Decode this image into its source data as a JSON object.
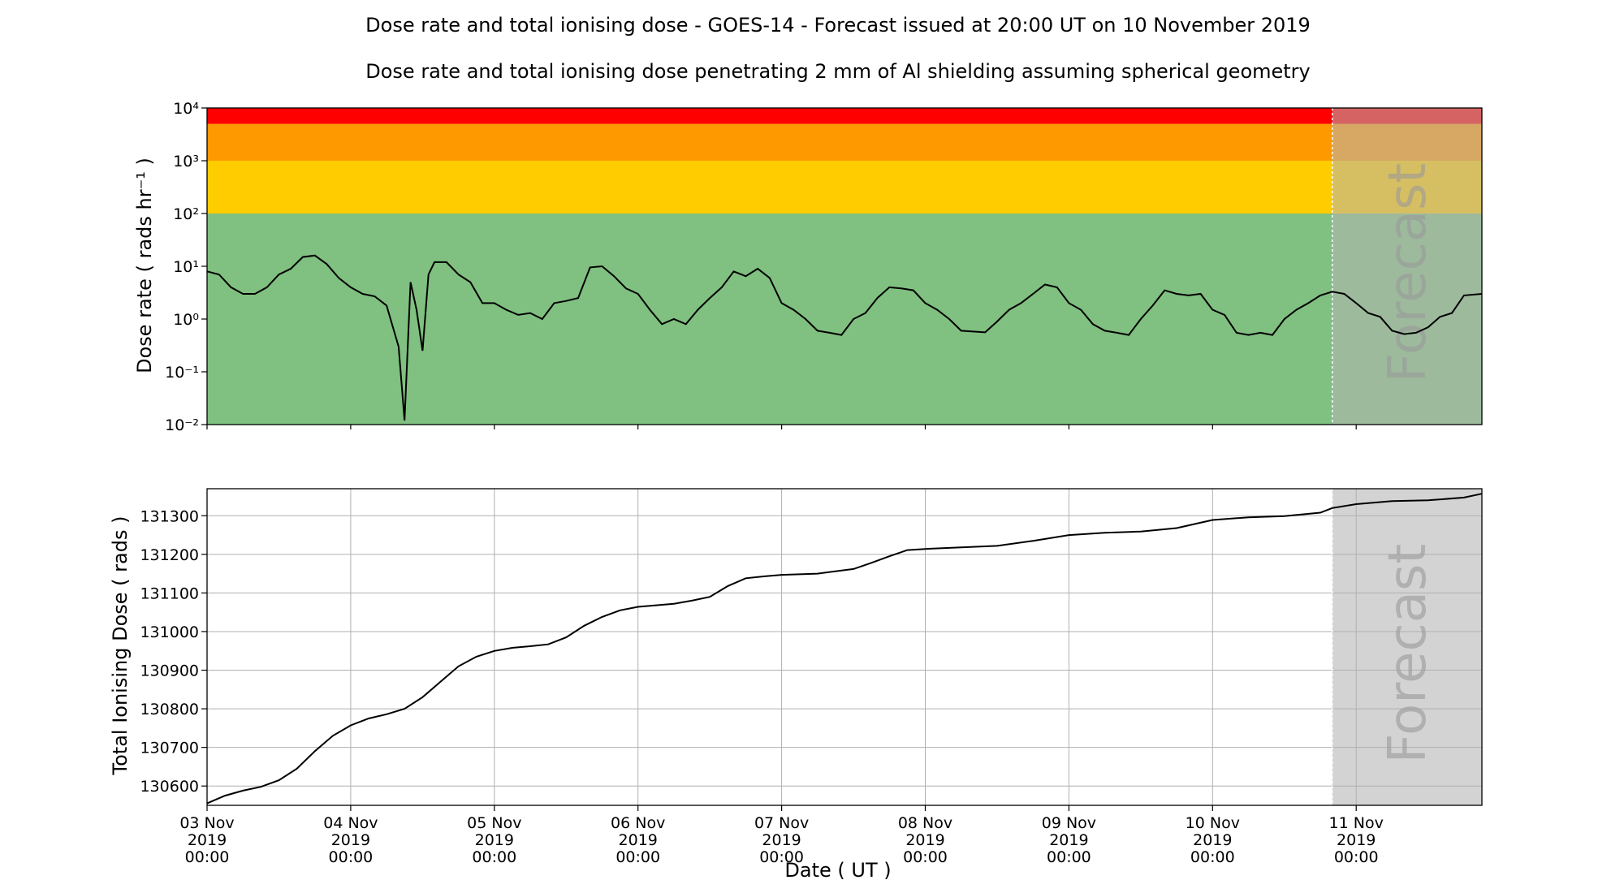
{
  "page": {
    "title": "Dose rate and total ionising dose - GOES-14 - Forecast issued at 20:00 UT on 10 November 2019",
    "subtitle": "Dose rate and total ionising dose penetrating 2 mm of Al shielding assuming spherical geometry"
  },
  "colors": {
    "band_red": "#ff0000",
    "band_orange": "#ff9900",
    "band_yellow": "#ffcc00",
    "band_green": "#80c080",
    "forecast_shade": "#d3d3d3",
    "line": "#000000",
    "grid": "#b0b0b0"
  },
  "chart_data": [
    {
      "type": "line",
      "ylabel": "Dose rate ( rads hr⁻¹ )",
      "yscale": "log",
      "ylim": [
        0.01,
        10000
      ],
      "xlim": [
        "2019-11-03 00:00",
        "2019-11-11 21:00"
      ],
      "yticks": [
        "10⁻²",
        "10⁻¹",
        "10⁰",
        "10¹",
        "10²",
        "10³",
        "10⁴"
      ],
      "grid": false,
      "forecast_label": "Forecast",
      "forecast_start": "2019-11-10 20:00",
      "threshold_bands": [
        {
          "from": 0.01,
          "to": 100,
          "color": "#80c080"
        },
        {
          "from": 100,
          "to": 1000,
          "color": "#ffcc00"
        },
        {
          "from": 1000,
          "to": 5000,
          "color": "#ff9900"
        },
        {
          "from": 5000,
          "to": 10000,
          "color": "#ff0000"
        }
      ],
      "series": [
        {
          "x": [
            "2019-11-03 00:00",
            "2019-11-03 02:00",
            "2019-11-03 04:00",
            "2019-11-03 06:00",
            "2019-11-03 08:00",
            "2019-11-03 10:00",
            "2019-11-03 12:00",
            "2019-11-03 14:00",
            "2019-11-03 16:00",
            "2019-11-03 18:00",
            "2019-11-03 20:00",
            "2019-11-03 22:00",
            "2019-11-04 00:00",
            "2019-11-04 02:00",
            "2019-11-04 04:00",
            "2019-11-04 06:00",
            "2019-11-04 08:00",
            "2019-11-04 09:00",
            "2019-11-04 10:00",
            "2019-11-04 11:00",
            "2019-11-04 12:00",
            "2019-11-04 13:00",
            "2019-11-04 14:00",
            "2019-11-04 16:00",
            "2019-11-04 18:00",
            "2019-11-04 20:00",
            "2019-11-04 22:00",
            "2019-11-05 00:00",
            "2019-11-05 02:00",
            "2019-11-05 04:00",
            "2019-11-05 06:00",
            "2019-11-05 08:00",
            "2019-11-05 10:00",
            "2019-11-05 12:00",
            "2019-11-05 14:00",
            "2019-11-05 16:00",
            "2019-11-05 18:00",
            "2019-11-05 20:00",
            "2019-11-05 22:00",
            "2019-11-06 00:00",
            "2019-11-06 02:00",
            "2019-11-06 04:00",
            "2019-11-06 06:00",
            "2019-11-06 08:00",
            "2019-11-06 10:00",
            "2019-11-06 12:00",
            "2019-11-06 14:00",
            "2019-11-06 16:00",
            "2019-11-06 18:00",
            "2019-11-06 20:00",
            "2019-11-06 22:00",
            "2019-11-07 00:00",
            "2019-11-07 02:00",
            "2019-11-07 04:00",
            "2019-11-07 06:00",
            "2019-11-07 08:00",
            "2019-11-07 10:00",
            "2019-11-07 12:00",
            "2019-11-07 14:00",
            "2019-11-07 16:00",
            "2019-11-07 18:00",
            "2019-11-07 20:00",
            "2019-11-07 22:00",
            "2019-11-08 00:00",
            "2019-11-08 02:00",
            "2019-11-08 04:00",
            "2019-11-08 06:00",
            "2019-11-08 08:00",
            "2019-11-08 10:00",
            "2019-11-08 12:00",
            "2019-11-08 14:00",
            "2019-11-08 16:00",
            "2019-11-08 18:00",
            "2019-11-08 20:00",
            "2019-11-08 22:00",
            "2019-11-09 00:00",
            "2019-11-09 02:00",
            "2019-11-09 04:00",
            "2019-11-09 06:00",
            "2019-11-09 08:00",
            "2019-11-09 10:00",
            "2019-11-09 12:00",
            "2019-11-09 14:00",
            "2019-11-09 16:00",
            "2019-11-09 18:00",
            "2019-11-09 20:00",
            "2019-11-09 22:00",
            "2019-11-10 00:00",
            "2019-11-10 02:00",
            "2019-11-10 04:00",
            "2019-11-10 06:00",
            "2019-11-10 08:00",
            "2019-11-10 10:00",
            "2019-11-10 12:00",
            "2019-11-10 14:00",
            "2019-11-10 16:00",
            "2019-11-10 18:00",
            "2019-11-10 20:00",
            "2019-11-10 22:00",
            "2019-11-11 00:00",
            "2019-11-11 02:00",
            "2019-11-11 04:00",
            "2019-11-11 06:00",
            "2019-11-11 08:00",
            "2019-11-11 10:00",
            "2019-11-11 12:00",
            "2019-11-11 14:00",
            "2019-11-11 16:00",
            "2019-11-11 18:00",
            "2019-11-11 21:00"
          ],
          "values": [
            8,
            7,
            4,
            3,
            3,
            4,
            7,
            9,
            15,
            16,
            11,
            6,
            4,
            3,
            2.7,
            1.8,
            0.3,
            0.012,
            5,
            1.5,
            0.25,
            7,
            12,
            12,
            7,
            5,
            2,
            2,
            1.5,
            1.2,
            1.3,
            1.0,
            2.0,
            2.2,
            2.5,
            9.5,
            10,
            6.5,
            3.8,
            3.0,
            1.5,
            0.8,
            1.0,
            0.8,
            1.5,
            2.5,
            4,
            8,
            6.5,
            9,
            6,
            2.0,
            1.5,
            1.0,
            0.6,
            0.55,
            0.5,
            1.0,
            1.3,
            2.5,
            4,
            3.8,
            3.5,
            2.0,
            1.5,
            1.0,
            0.6,
            0.58,
            0.56,
            0.9,
            1.5,
            2.0,
            3.0,
            4.5,
            4.0,
            2.0,
            1.5,
            0.8,
            0.6,
            0.55,
            0.5,
            1.0,
            1.8,
            3.5,
            3.0,
            2.8,
            3.0,
            1.5,
            1.2,
            0.55,
            0.5,
            0.55,
            0.5,
            1.0,
            1.5,
            2.0,
            2.8,
            3.3,
            3.0,
            2.0,
            1.3,
            1.1,
            0.6,
            0.52,
            0.55,
            0.7,
            1.1,
            1.3,
            2.8,
            3.0
          ]
        }
      ]
    },
    {
      "type": "line",
      "xlabel": "Date ( UT )",
      "ylabel": "Total Ionising Dose ( rads )",
      "ylim": [
        130550,
        131370
      ],
      "xlim": [
        "2019-11-03 00:00",
        "2019-11-11 21:00"
      ],
      "yticks": [
        130600,
        130700,
        130800,
        130900,
        131000,
        131100,
        131200,
        131300
      ],
      "xticks": [
        {
          "date": "2019-11-03 00:00",
          "label": [
            "03 Nov",
            "2019",
            "00:00"
          ]
        },
        {
          "date": "2019-11-04 00:00",
          "label": [
            "04 Nov",
            "2019",
            "00:00"
          ]
        },
        {
          "date": "2019-11-05 00:00",
          "label": [
            "05 Nov",
            "2019",
            "00:00"
          ]
        },
        {
          "date": "2019-11-06 00:00",
          "label": [
            "06 Nov",
            "2019",
            "00:00"
          ]
        },
        {
          "date": "2019-11-07 00:00",
          "label": [
            "07 Nov",
            "2019",
            "00:00"
          ]
        },
        {
          "date": "2019-11-08 00:00",
          "label": [
            "08 Nov",
            "2019",
            "00:00"
          ]
        },
        {
          "date": "2019-11-09 00:00",
          "label": [
            "09 Nov",
            "2019",
            "00:00"
          ]
        },
        {
          "date": "2019-11-10 00:00",
          "label": [
            "10 Nov",
            "2019",
            "00:00"
          ]
        },
        {
          "date": "2019-11-11 00:00",
          "label": [
            "11 Nov",
            "2019",
            "00:00"
          ]
        }
      ],
      "grid": true,
      "forecast_label": "Forecast",
      "forecast_start": "2019-11-10 20:00",
      "series": [
        {
          "x": [
            "2019-11-03 00:00",
            "2019-11-03 03:00",
            "2019-11-03 06:00",
            "2019-11-03 09:00",
            "2019-11-03 12:00",
            "2019-11-03 15:00",
            "2019-11-03 18:00",
            "2019-11-03 21:00",
            "2019-11-04 00:00",
            "2019-11-04 03:00",
            "2019-11-04 06:00",
            "2019-11-04 09:00",
            "2019-11-04 12:00",
            "2019-11-04 15:00",
            "2019-11-04 18:00",
            "2019-11-04 21:00",
            "2019-11-05 00:00",
            "2019-11-05 03:00",
            "2019-11-05 06:00",
            "2019-11-05 09:00",
            "2019-11-05 12:00",
            "2019-11-05 15:00",
            "2019-11-05 18:00",
            "2019-11-05 21:00",
            "2019-11-06 00:00",
            "2019-11-06 03:00",
            "2019-11-06 06:00",
            "2019-11-06 09:00",
            "2019-11-06 12:00",
            "2019-11-06 15:00",
            "2019-11-06 18:00",
            "2019-11-06 21:00",
            "2019-11-07 00:00",
            "2019-11-07 06:00",
            "2019-11-07 12:00",
            "2019-11-07 15:00",
            "2019-11-07 18:00",
            "2019-11-07 21:00",
            "2019-11-08 00:00",
            "2019-11-08 06:00",
            "2019-11-08 12:00",
            "2019-11-08 18:00",
            "2019-11-09 00:00",
            "2019-11-09 06:00",
            "2019-11-09 12:00",
            "2019-11-09 18:00",
            "2019-11-10 00:00",
            "2019-11-10 06:00",
            "2019-11-10 12:00",
            "2019-11-10 18:00",
            "2019-11-10 20:00",
            "2019-11-11 00:00",
            "2019-11-11 06:00",
            "2019-11-11 12:00",
            "2019-11-11 18:00",
            "2019-11-11 21:00"
          ],
          "values": [
            130555,
            130575,
            130588,
            130598,
            130615,
            130645,
            130690,
            130730,
            130757,
            130775,
            130786,
            130800,
            130830,
            130870,
            130910,
            130935,
            130950,
            130958,
            130962,
            130967,
            130985,
            131015,
            131038,
            131055,
            131064,
            131068,
            131072,
            131080,
            131090,
            131118,
            131138,
            131143,
            131147,
            131150,
            131162,
            131178,
            131195,
            131211,
            131214,
            131218,
            131222,
            131235,
            131250,
            131256,
            131259,
            131268,
            131289,
            131296,
            131299,
            131308,
            131320,
            131330,
            131338,
            131340,
            131347,
            131357
          ]
        }
      ]
    }
  ]
}
